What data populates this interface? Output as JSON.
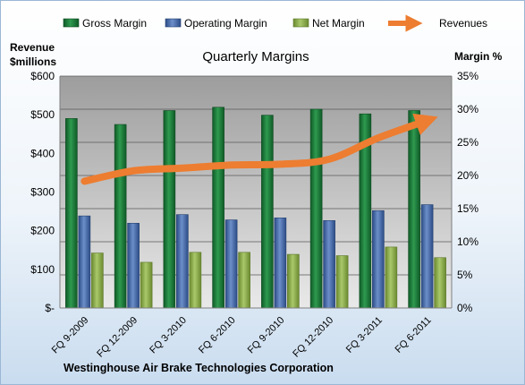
{
  "chart_data": {
    "type": "bar",
    "title": "Quarterly Margins",
    "footer": "Westinghouse Air Brake Technologies Corporation",
    "ylabel_left": [
      "Revenue",
      "$millions"
    ],
    "ylabel_right": "Margin %",
    "ylim_left": [
      0,
      600
    ],
    "ylim_right": [
      0,
      35
    ],
    "left_ticks": [
      "$-",
      "$100",
      "$200",
      "$300",
      "$400",
      "$500",
      "$600"
    ],
    "right_ticks": [
      "0%",
      "5%",
      "10%",
      "15%",
      "20%",
      "25%",
      "30%",
      "35%"
    ],
    "grid": true,
    "legend_position": "top",
    "categories": [
      "FQ 9-2009",
      "FQ 12-2009",
      "FQ 3-2010",
      "FQ 6-2010",
      "FQ 9-2010",
      "FQ 12-2010",
      "FQ 3-2011",
      "FQ 6-2011"
    ],
    "series": [
      {
        "name": "Gross Margin",
        "axis": "right",
        "kind": "bar",
        "color": "#1f7a3c",
        "values": [
          28.6,
          27.7,
          29.8,
          30.3,
          29.1,
          30.0,
          29.3,
          29.8
        ]
      },
      {
        "name": "Operating Margin",
        "axis": "right",
        "kind": "bar",
        "color": "#4a6fae",
        "values": [
          13.9,
          12.8,
          14.1,
          13.3,
          13.6,
          13.2,
          14.7,
          15.6
        ]
      },
      {
        "name": "Net Margin",
        "axis": "right",
        "kind": "bar",
        "color": "#8cad4d",
        "values": [
          8.3,
          6.9,
          8.4,
          8.4,
          8.1,
          7.9,
          9.2,
          7.6
        ]
      },
      {
        "name": "Revenues",
        "axis": "left",
        "kind": "line",
        "color": "#ed7d31",
        "values": [
          328,
          355,
          362,
          370,
          372,
          385,
          440,
          485
        ]
      }
    ]
  }
}
